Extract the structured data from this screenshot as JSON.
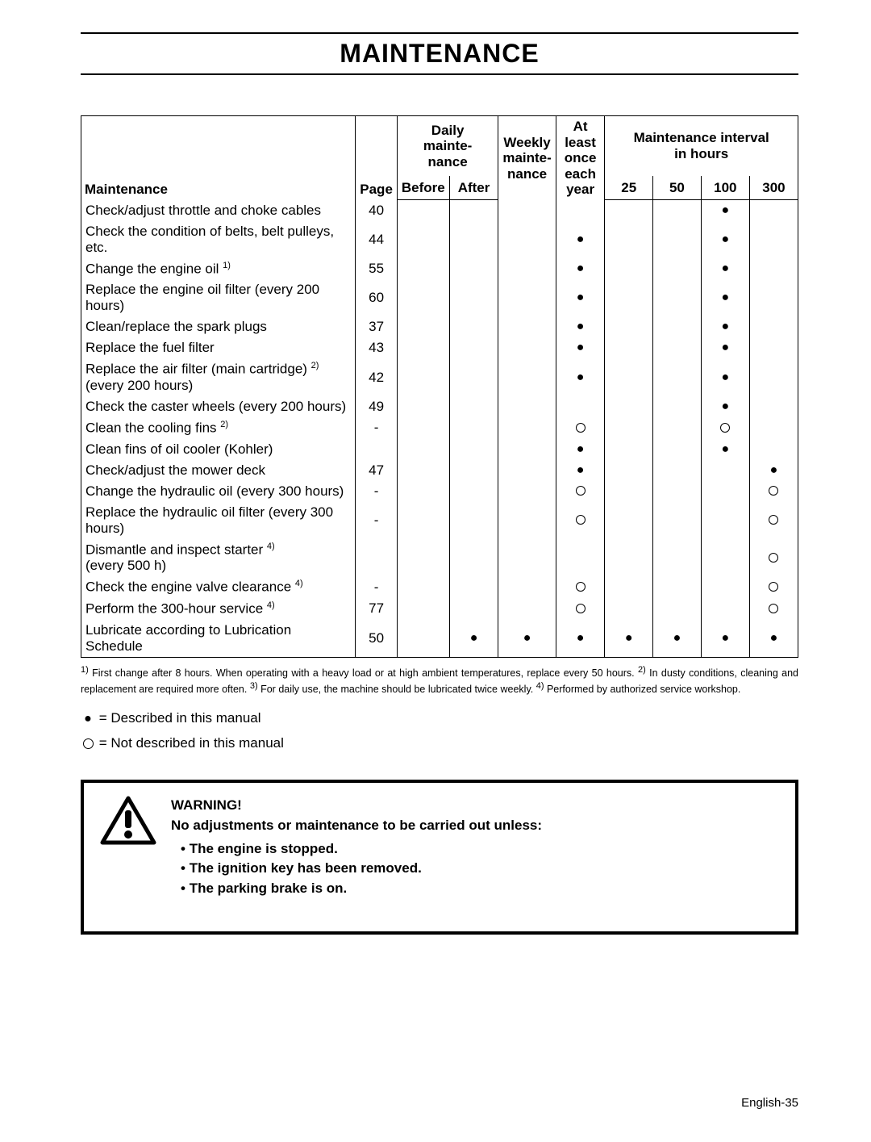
{
  "title": "MAINTENANCE",
  "headers": {
    "maintenance": "Maintenance",
    "page": "Page",
    "daily": "Daily mainte-nance",
    "before": "Before",
    "after": "After",
    "weekly": "Weekly mainte-nance",
    "atleast": "At least once each year",
    "interval": "Maintenance interval in hours",
    "h25": "25",
    "h50": "50",
    "h100": "100",
    "h300": "300"
  },
  "rows": [
    {
      "task": "Check/adjust throttle and choke cables",
      "sup": "",
      "page": "40",
      "marks": [
        "",
        "",
        "",
        "",
        "",
        "",
        "●",
        ""
      ]
    },
    {
      "task": "Check the condition of belts, belt pulleys, etc.",
      "sup": "",
      "page": "44",
      "marks": [
        "",
        "",
        "",
        "●",
        "",
        "",
        "●",
        ""
      ]
    },
    {
      "task": "Change the engine oil",
      "sup": "1)",
      "page": "55",
      "marks": [
        "",
        "",
        "",
        "●",
        "",
        "",
        "●",
        ""
      ]
    },
    {
      "task": "Replace the engine oil filter (every 200 hours)",
      "sup": "",
      "page": "60",
      "marks": [
        "",
        "",
        "",
        "●",
        "",
        "",
        "●",
        ""
      ]
    },
    {
      "task": "Clean/replace the spark plugs",
      "sup": "",
      "page": "37",
      "marks": [
        "",
        "",
        "",
        "●",
        "",
        "",
        "●",
        ""
      ]
    },
    {
      "task": "Replace the fuel filter",
      "sup": "",
      "page": "43",
      "marks": [
        "",
        "",
        "",
        "●",
        "",
        "",
        "●",
        ""
      ]
    },
    {
      "task": "Replace the air filter (main cartridge)",
      "sup": "2)",
      "tail": " (every 200 hours)",
      "page": "42",
      "marks": [
        "",
        "",
        "",
        "●",
        "",
        "",
        "●",
        ""
      ]
    },
    {
      "task": "Check the caster wheels (every 200 hours)",
      "sup": "",
      "page": "49",
      "marks": [
        "",
        "",
        "",
        "",
        "",
        "",
        "●",
        ""
      ]
    },
    {
      "task": "Clean the cooling fins",
      "sup": "2)",
      "page": "-",
      "marks": [
        "",
        "",
        "",
        "○",
        "",
        "",
        "○",
        ""
      ]
    },
    {
      "task": "Clean fins of oil cooler (Kohler)",
      "sup": "",
      "page": "",
      "marks": [
        "",
        "",
        "",
        "●",
        "",
        "",
        "●",
        ""
      ]
    },
    {
      "task": "Check/adjust the mower deck",
      "sup": "",
      "page": "47",
      "marks": [
        "",
        "",
        "",
        "●",
        "",
        "",
        "",
        "●"
      ]
    },
    {
      "task": "Change the hydraulic oil (every 300 hours)",
      "sup": "",
      "page": "-",
      "marks": [
        "",
        "",
        "",
        "○",
        "",
        "",
        "",
        "○"
      ]
    },
    {
      "task": "Replace the hydraulic oil filter (every 300 hours)",
      "sup": "",
      "page": "-",
      "marks": [
        "",
        "",
        "",
        "○",
        "",
        "",
        "",
        "○"
      ]
    },
    {
      "task": "Dismantle and inspect starter",
      "sup": "4)",
      "tail": " (every 500 h)",
      "page": "",
      "marks": [
        "",
        "",
        "",
        "",
        "",
        "",
        "",
        "○"
      ]
    },
    {
      "task": "Check the engine valve clearance",
      "sup": "4)",
      "page": "-",
      "marks": [
        "",
        "",
        "",
        "○",
        "",
        "",
        "",
        "○"
      ]
    },
    {
      "task": "Perform the 300-hour service",
      "sup": "4)",
      "page": "77",
      "marks": [
        "",
        "",
        "",
        "○",
        "",
        "",
        "",
        "○"
      ]
    },
    {
      "task": "Lubricate according to Lubrication Schedule",
      "sup": "",
      "page": "50",
      "marks": [
        "",
        "●",
        "●",
        "●",
        "●",
        "●",
        "●",
        "●"
      ]
    }
  ],
  "footnotes": "1) First change after 8 hours. When operating with a heavy load or at high ambient temperatures, replace every 50 hours.  2) In dusty conditions, cleaning and replacement are required more often. 3) For daily use, the machine should be lubricated twice weekly. 4) Performed by authorized service workshop.",
  "legend": {
    "filled": "= Described in this manual",
    "open": "= Not described in this manual"
  },
  "warning": {
    "title": "WARNING!",
    "lead": "No adjustments or maintenance to be carried out unless:",
    "items": [
      "The engine is stopped.",
      "The ignition key has been removed.",
      "The parking brake is on."
    ]
  },
  "pagenum_prefix": "English-",
  "pagenum": "35"
}
